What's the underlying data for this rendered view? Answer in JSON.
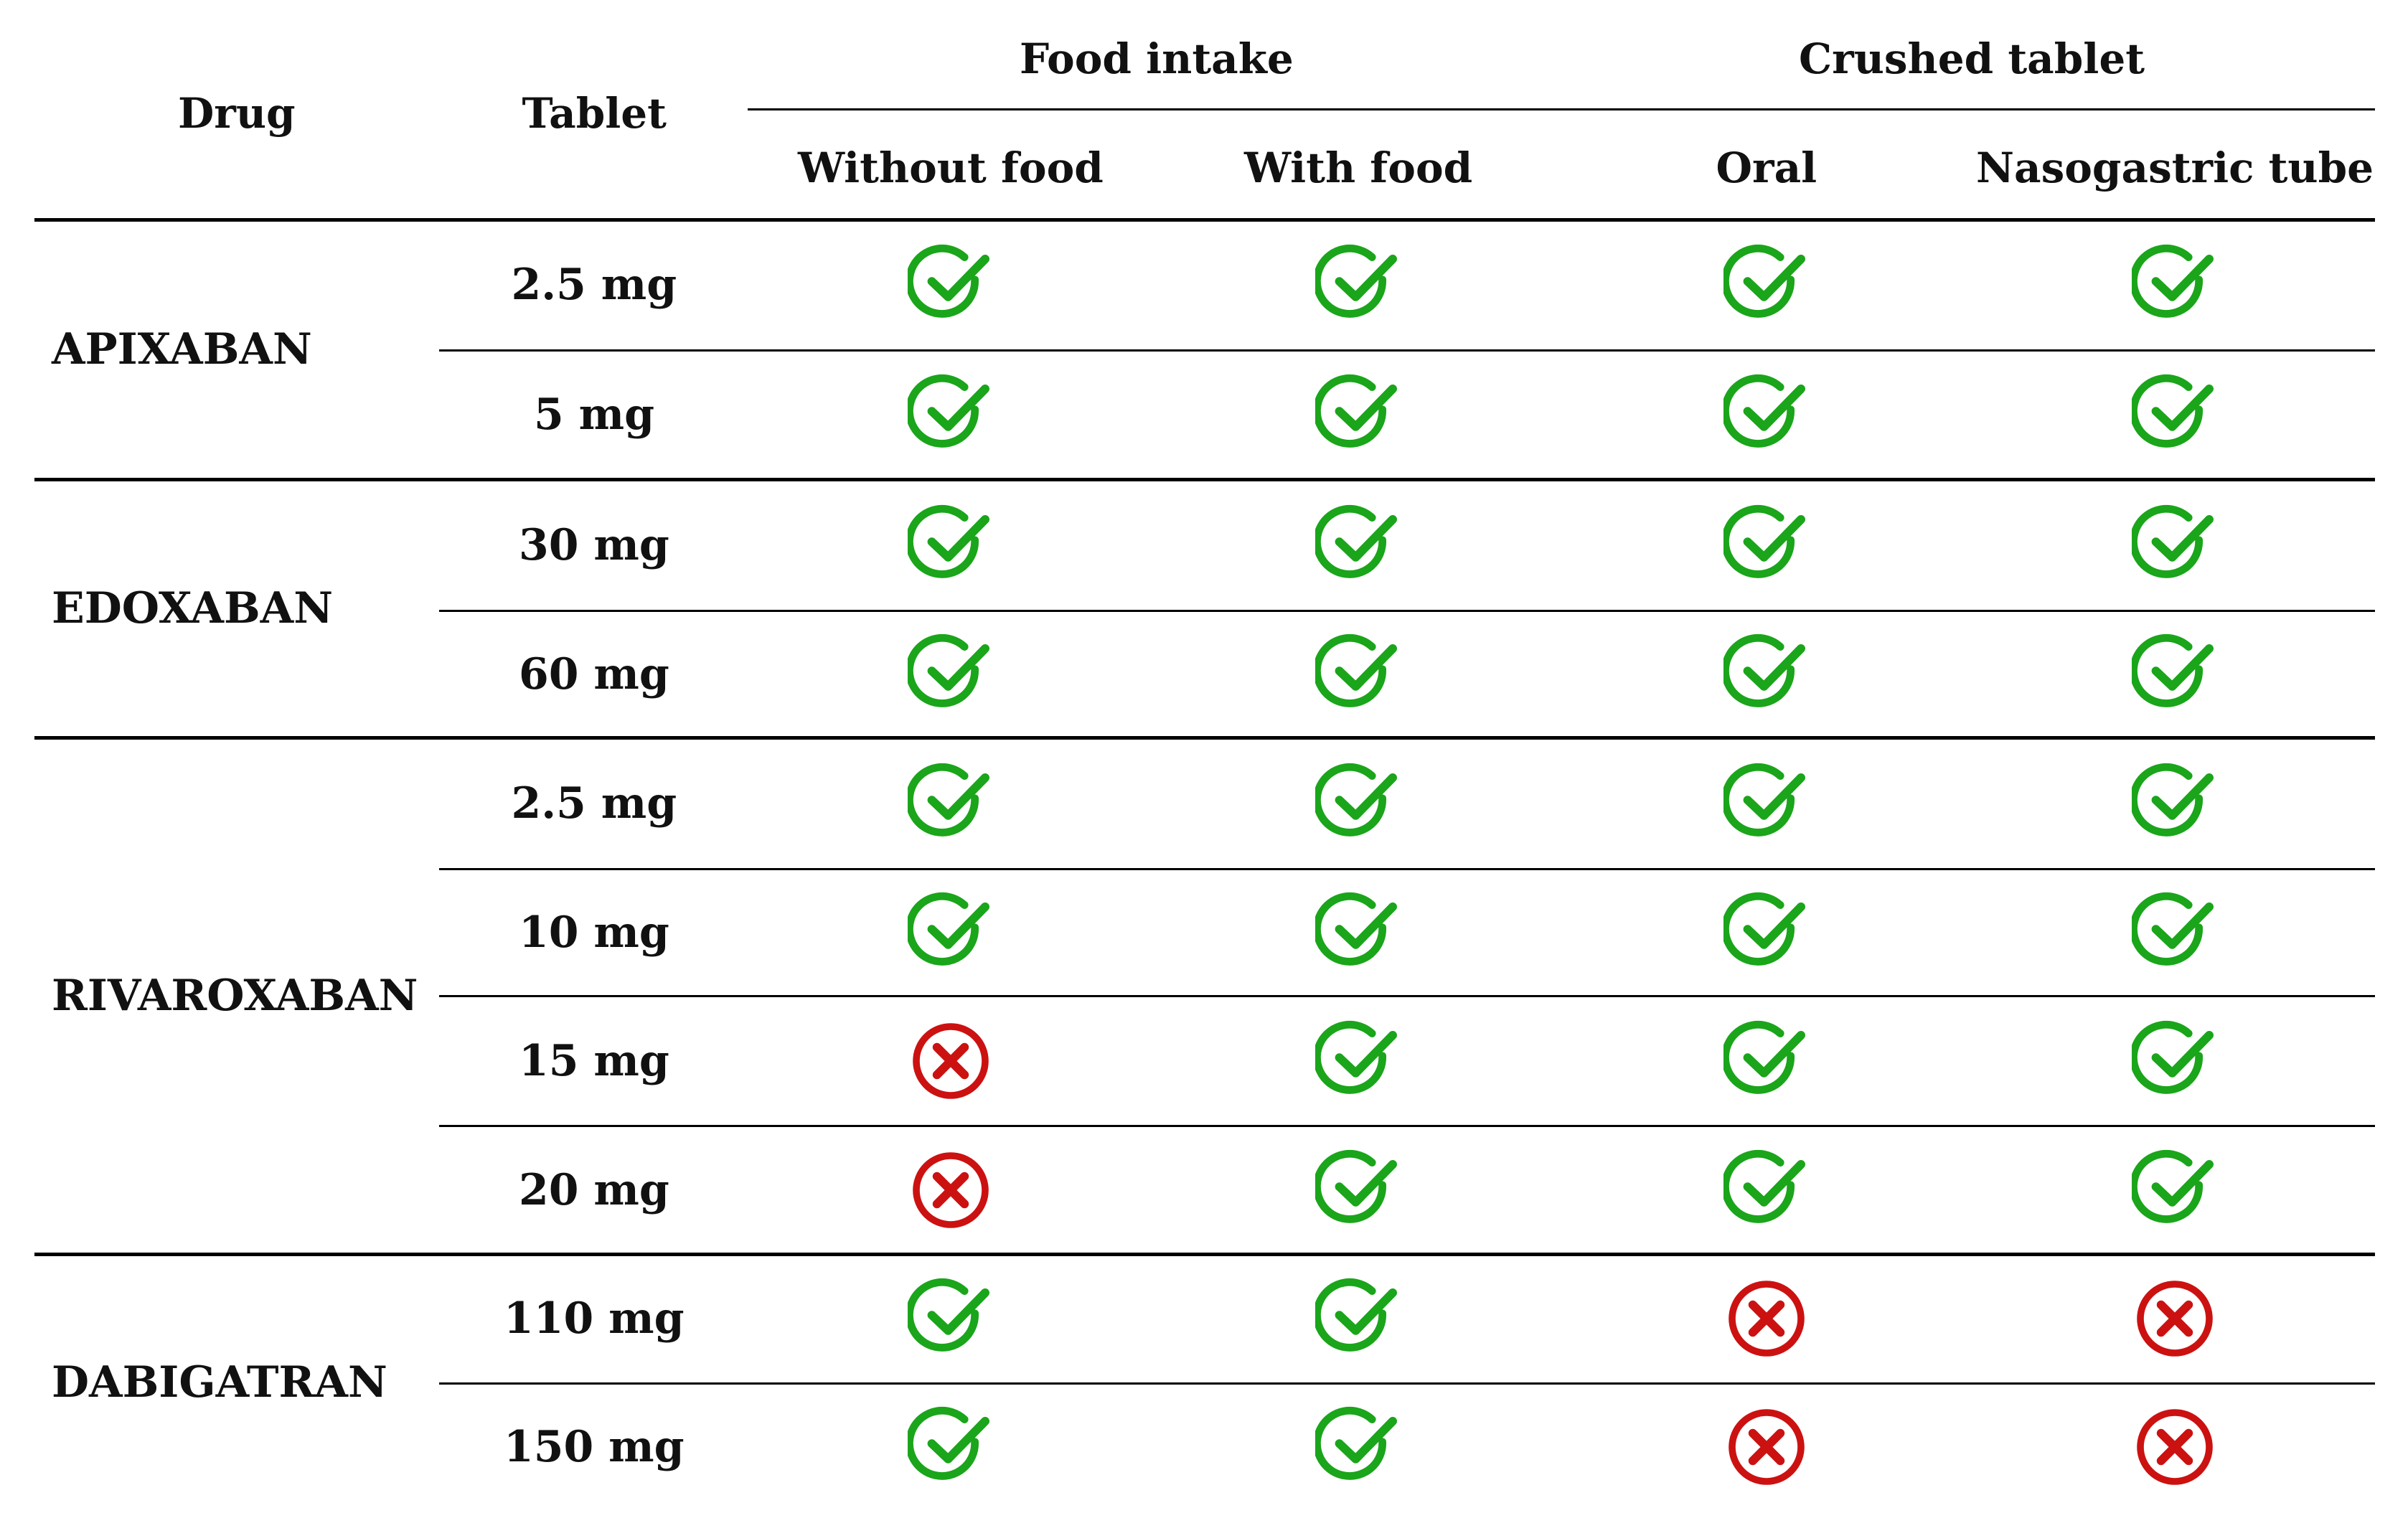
{
  "colors": {
    "check": "#1aa51a",
    "cross": "#cc1111",
    "rule": "#000000"
  },
  "header": {
    "drug": "Drug",
    "tablet": "Tablet",
    "groups": [
      {
        "label": "Food intake",
        "columns": [
          "Without food",
          "With food"
        ]
      },
      {
        "label": "Crushed tablet",
        "columns": [
          "Oral",
          "Nasogastric tube"
        ]
      }
    ]
  },
  "rows": [
    {
      "drug": "APIXABAN",
      "dose": "2.5 mg",
      "marks": [
        "check-icon",
        "check-icon",
        "check-icon",
        "check-icon"
      ]
    },
    {
      "drug": "APIXABAN",
      "dose": "5 mg",
      "marks": [
        "check-icon",
        "check-icon",
        "check-icon",
        "check-icon"
      ]
    },
    {
      "drug": "EDOXABAN",
      "dose": "30 mg",
      "marks": [
        "check-icon",
        "check-icon",
        "check-icon",
        "check-icon"
      ]
    },
    {
      "drug": "EDOXABAN",
      "dose": "60 mg",
      "marks": [
        "check-icon",
        "check-icon",
        "check-icon",
        "check-icon"
      ]
    },
    {
      "drug": "RIVAROXABAN",
      "dose": "2.5 mg",
      "marks": [
        "check-icon",
        "check-icon",
        "check-icon",
        "check-icon"
      ]
    },
    {
      "drug": "RIVAROXABAN",
      "dose": "10 mg",
      "marks": [
        "check-icon",
        "check-icon",
        "check-icon",
        "check-icon"
      ]
    },
    {
      "drug": "RIVAROXABAN",
      "dose": "15 mg",
      "marks": [
        "cross-icon",
        "check-icon",
        "check-icon",
        "check-icon"
      ]
    },
    {
      "drug": "RIVAROXABAN",
      "dose": "20 mg",
      "marks": [
        "cross-icon",
        "check-icon",
        "check-icon",
        "check-icon"
      ]
    },
    {
      "drug": "DABIGATRAN",
      "dose": "110 mg",
      "marks": [
        "check-icon",
        "check-icon",
        "cross-icon",
        "cross-icon"
      ]
    },
    {
      "drug": "DABIGATRAN",
      "dose": "150 mg",
      "marks": [
        "check-icon",
        "check-icon",
        "cross-icon",
        "cross-icon"
      ]
    }
  ]
}
